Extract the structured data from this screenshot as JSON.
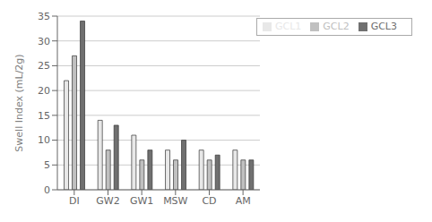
{
  "chart_data": {
    "type": "bar",
    "categories": [
      "DI",
      "GW2",
      "GW1",
      "MSW",
      "CD",
      "AM"
    ],
    "series": [
      {
        "name": "GCL1",
        "color": "#e8e8e8",
        "values": [
          22,
          14,
          11,
          8,
          8,
          8
        ]
      },
      {
        "name": "GCL2",
        "color": "#c0c0c0",
        "values": [
          27,
          8,
          6,
          6,
          6,
          6
        ]
      },
      {
        "name": "GCL3",
        "color": "#707070",
        "values": [
          34,
          13,
          8,
          10,
          7,
          6
        ]
      }
    ],
    "ylabel": "Swell Index (mL/2g)",
    "ylim": [
      0,
      35
    ],
    "yticks": [
      0,
      5,
      10,
      15,
      20,
      25,
      30,
      35
    ],
    "grid": true,
    "legend": "upper right"
  }
}
